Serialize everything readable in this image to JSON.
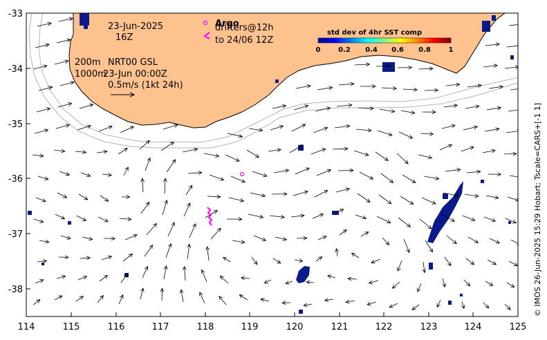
{
  "map": {
    "x_ticks": [
      "114",
      "115",
      "116",
      "117",
      "118",
      "119",
      "120",
      "121",
      "122",
      "123",
      "124",
      "125"
    ],
    "y_ticks": [
      "-33",
      "-34",
      "-35",
      "-36",
      "-37",
      "-38"
    ],
    "lon_range": [
      114,
      125
    ],
    "lat_range": [
      -38.5,
      -33
    ],
    "colors": {
      "land": "#fdc28e",
      "coast_line": "#000000",
      "isobath": "#b4b4b4",
      "sst_patch": "#0a1a8a",
      "drifter": "#ff00ff"
    }
  },
  "annotations": {
    "date": "23-Jun-2025",
    "hour": "16Z",
    "depth_200": "200m",
    "depth_1000": "1000m",
    "product": "NRT00 GSL",
    "product_time": "23-Jun 00:00Z",
    "scale": "0.5m/s (1kt 24h)"
  },
  "legend": {
    "argo": "Argo",
    "drifters_a": "drifters@12h",
    "drifters_b": "to 24/06 12Z"
  },
  "colorbar": {
    "title": "std dev of 4hr SST comp",
    "ticks": [
      "0",
      "0.2",
      "0.4",
      "0.6",
      "0.8",
      "1"
    ]
  },
  "credit": "© IMOS 26-Jun-2025 15:29 Hobart; Tscale=CARS+[-1 1]"
}
